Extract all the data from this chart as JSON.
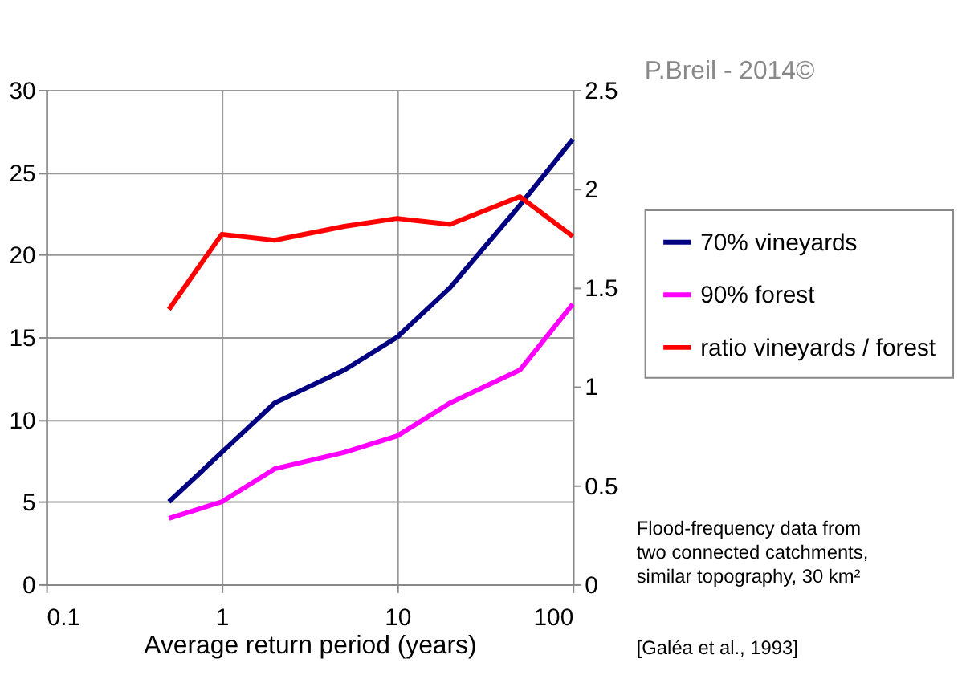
{
  "chart_data": {
    "type": "line",
    "xlabel": "Average return period (years)",
    "x": [
      0.5,
      1,
      2,
      5,
      10,
      20,
      50,
      100
    ],
    "series": [
      {
        "name": "70% vineyards",
        "color": "#000080",
        "values": [
          5,
          8,
          11,
          13,
          15,
          18,
          23,
          27
        ]
      },
      {
        "name": "90% forest",
        "color": "#ff00ff",
        "values": [
          4,
          5,
          7,
          8,
          9,
          11,
          13,
          17
        ]
      },
      {
        "name": "ratio vineyards / forest",
        "color": "#ff0000",
        "axis": "y2",
        "values": [
          1.39,
          1.77,
          1.74,
          1.81,
          1.85,
          1.82,
          1.96,
          1.76
        ]
      }
    ],
    "log": "x",
    "xlim": [
      0.1,
      100
    ],
    "xticks": [
      0.1,
      1,
      10,
      100
    ],
    "ylim": [
      0,
      30
    ],
    "yticks": [
      0,
      5,
      10,
      15,
      20,
      25,
      30
    ],
    "y2lim": [
      0,
      2.5
    ],
    "y2ticks": [
      0,
      0.5,
      1,
      1.5,
      2,
      2.5
    ],
    "grid": true,
    "legend": "right",
    "marker": "none",
    "line_style": "solid",
    "annotations": [
      "P.Breil - 2014©",
      "Flood-frequency data from\ntwo connected catchments,\nsimilar topography, 30 km²",
      "[Galéa et al., 1993]"
    ]
  }
}
